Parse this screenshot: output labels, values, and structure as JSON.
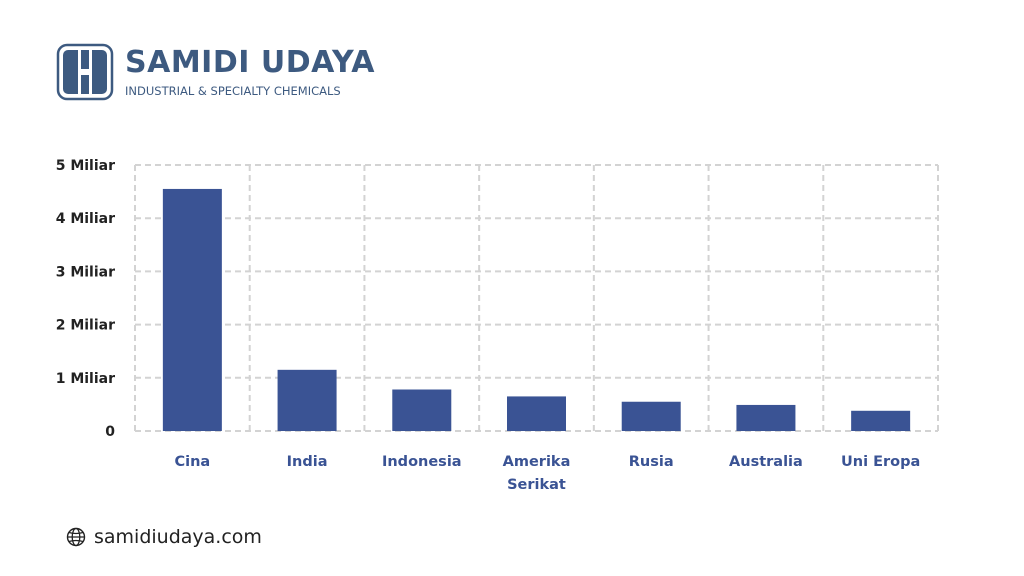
{
  "brand": {
    "name": "SAMIDI UDAYA",
    "tagline": "INDUSTRIAL & SPECIALTY CHEMICALS",
    "color": "#3d5a80"
  },
  "footer": {
    "website": "samidiudaya.com",
    "icon": "globe-icon"
  },
  "chart_data": {
    "type": "bar",
    "categories": [
      "Cina",
      "India",
      "Indonesia",
      "Amerika Serikat",
      "Rusia",
      "Australia",
      "Uni Eropa"
    ],
    "values": [
      4.55,
      1.15,
      0.78,
      0.65,
      0.55,
      0.49,
      0.38
    ],
    "ylim": [
      0,
      5
    ],
    "yticks": [
      0,
      1,
      2,
      3,
      4,
      5
    ],
    "ytick_labels": [
      "0",
      "1 Miliar",
      "2 Miliar",
      "3 Miliar",
      "4 Miliar",
      "5 Miliar"
    ],
    "title": "",
    "xlabel": "",
    "ylabel": "",
    "grid": true,
    "bar_color": "#3a5394",
    "label_color": "#3a5394"
  }
}
